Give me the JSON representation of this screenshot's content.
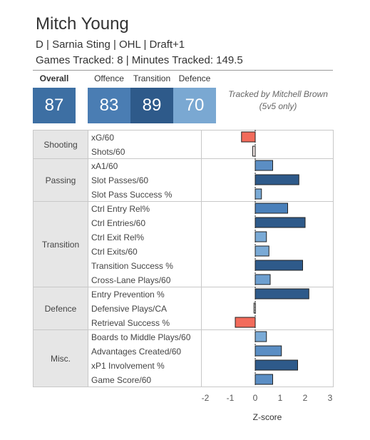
{
  "player": {
    "name": "Mitch Young",
    "info": "D | Sarnia Sting | OHL | Draft+1",
    "games": "Games Tracked: 8 | Minutes Tracked: 149.5"
  },
  "scores": [
    {
      "label": "Overall",
      "value": "87",
      "color": "#3d6fa3"
    },
    {
      "label": "Offence",
      "value": "83",
      "color": "#4a7db3"
    },
    {
      "label": "Transition",
      "value": "89",
      "color": "#2e5a8a"
    },
    {
      "label": "Defence",
      "value": "70",
      "color": "#7aa8d2"
    }
  ],
  "tracked_by": [
    "Tracked by Mitchell Brown",
    "(5v5 only)"
  ],
  "chart_data": {
    "type": "bar",
    "orientation": "horizontal",
    "xlabel": "Z-score",
    "xlim": [
      -2,
      3
    ],
    "xticks": [
      "-2",
      "-1",
      "0",
      "1",
      "2",
      "3"
    ],
    "groups": [
      {
        "name": "Shooting",
        "metrics": [
          {
            "label": "xG/60",
            "value": -0.55,
            "color": "#f26b5b"
          },
          {
            "label": "Shots/60",
            "value": -0.1,
            "color": "#f3e8e6"
          }
        ]
      },
      {
        "name": "Passing",
        "metrics": [
          {
            "label": "xA1/60",
            "value": 0.7,
            "color": "#5b8ec4"
          },
          {
            "label": "Slot Passes/60",
            "value": 1.75,
            "color": "#2e5a8a"
          },
          {
            "label": "Slot Pass Success %",
            "value": 0.25,
            "color": "#7aaad6"
          }
        ]
      },
      {
        "name": "Transition",
        "metrics": [
          {
            "label": "Ctrl Entry Rel%",
            "value": 1.3,
            "color": "#4a80ba"
          },
          {
            "label": "Ctrl Entries/60",
            "value": 2.0,
            "color": "#2e5a8a"
          },
          {
            "label": "Ctrl Exit Rel%",
            "value": 0.45,
            "color": "#7aaad6"
          },
          {
            "label": "Ctrl Exits/60",
            "value": 0.55,
            "color": "#7aaad6"
          },
          {
            "label": "Transition Success %",
            "value": 1.9,
            "color": "#2e5a8a"
          },
          {
            "label": "Cross-Lane Plays/60",
            "value": 0.6,
            "color": "#6d9fd0"
          }
        ]
      },
      {
        "name": "Defence",
        "metrics": [
          {
            "label": "Entry Prevention %",
            "value": 2.15,
            "color": "#2e5a8a"
          },
          {
            "label": "Defensive Plays/CA",
            "value": -0.05,
            "color": "#e8e8e8"
          },
          {
            "label": "Retrieval Success %",
            "value": -0.8,
            "color": "#f26b5b"
          }
        ]
      },
      {
        "name": "Misc.",
        "metrics": [
          {
            "label": "Boards to Middle Plays/60",
            "value": 0.45,
            "color": "#7aaad6"
          },
          {
            "label": "Advantages Created/60",
            "value": 1.05,
            "color": "#5b8ec4"
          },
          {
            "label": "xP1 Involvement %",
            "value": 1.7,
            "color": "#2e5a8a"
          },
          {
            "label": "Game Score/60",
            "value": 0.7,
            "color": "#5b8ec4"
          }
        ]
      }
    ]
  }
}
